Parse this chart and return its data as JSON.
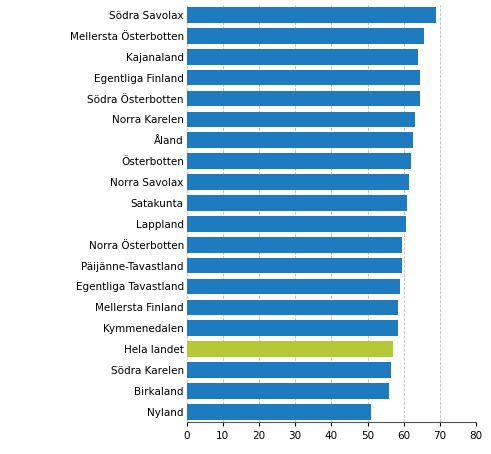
{
  "categories": [
    "Nyland",
    "Birkaland",
    "Södra Karelen",
    "Hela landet",
    "Kymmenedalen",
    "Mellersta Finland",
    "Egentliga Tavastland",
    "Päijänne-Tavastland",
    "Norra Österbotten",
    "Lappland",
    "Satakunta",
    "Norra Savolax",
    "Österbotten",
    "Åland",
    "Norra Karelen",
    "Södra Österbotten",
    "Egentliga Finland",
    "Kajanaland",
    "Mellersta Österbotten",
    "Södra Savolax"
  ],
  "values": [
    51.0,
    56.0,
    56.5,
    57.0,
    58.5,
    58.5,
    59.0,
    59.5,
    59.5,
    60.5,
    61.0,
    61.5,
    62.0,
    62.5,
    63.0,
    64.5,
    64.5,
    64.0,
    65.5,
    69.0
  ],
  "colors": [
    "#1f7bbf",
    "#1f7bbf",
    "#1f7bbf",
    "#b5c935",
    "#1f7bbf",
    "#1f7bbf",
    "#1f7bbf",
    "#1f7bbf",
    "#1f7bbf",
    "#1f7bbf",
    "#1f7bbf",
    "#1f7bbf",
    "#1f7bbf",
    "#1f7bbf",
    "#1f7bbf",
    "#1f7bbf",
    "#1f7bbf",
    "#1f7bbf",
    "#1f7bbf",
    "#1f7bbf"
  ],
  "xlim": [
    0,
    80
  ],
  "xticks": [
    0,
    10,
    20,
    30,
    40,
    50,
    60,
    70,
    80
  ],
  "background_color": "#ffffff",
  "grid_color": "#bbbbbb",
  "bar_height": 0.75,
  "tick_fontsize": 7.5,
  "label_fontsize": 7.5
}
